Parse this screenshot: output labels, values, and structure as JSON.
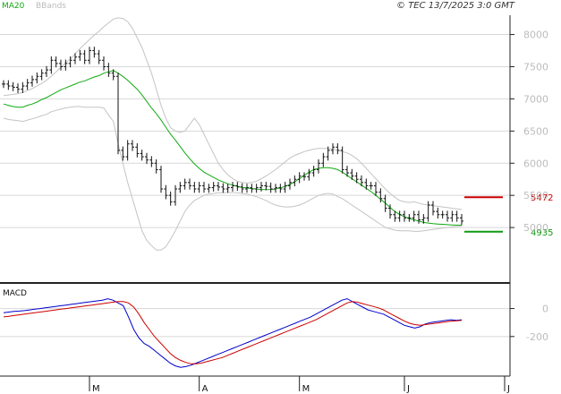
{
  "header": {
    "legend": [
      {
        "label": "MA20",
        "color": "#11aa11"
      },
      {
        "label": "BBands",
        "color": "#bbbbbb"
      }
    ],
    "copyright": "© TEC 13/7/2025 3:0 GMT"
  },
  "chart_data": [
    {
      "type": "candlestick",
      "ylim": [
        4250,
        8300
      ],
      "y_ticks": [
        {
          "value": 8000,
          "label": "8000"
        },
        {
          "value": 7500,
          "label": "7500"
        },
        {
          "value": 7000,
          "label": "7000"
        },
        {
          "value": 6500,
          "label": "6500"
        },
        {
          "value": 6000,
          "label": "6000"
        },
        {
          "value": 5500,
          "label": "5500"
        },
        {
          "value": 5000,
          "label": "5000"
        }
      ],
      "x_labels": [
        {
          "label": "M",
          "index": 18
        },
        {
          "label": "A",
          "index": 41
        },
        {
          "label": "M",
          "index": 62
        },
        {
          "label": "J",
          "index": 84
        },
        {
          "label": "J",
          "index": 105
        }
      ],
      "levels": [
        {
          "value": 5472,
          "label": "5472",
          "color": "#cc0000"
        },
        {
          "value": 4935,
          "label": "4935",
          "color": "#119911"
        }
      ],
      "series": [
        {
          "name": "MA20",
          "color": "#11aa11"
        },
        {
          "name": "BBands",
          "color": "#c4c4c4"
        }
      ],
      "close": [
        7230,
        7200,
        7180,
        7150,
        7200,
        7250,
        7300,
        7350,
        7400,
        7450,
        7600,
        7550,
        7500,
        7550,
        7600,
        7650,
        7700,
        7600,
        7750,
        7700,
        7600,
        7500,
        7400,
        7350,
        6200,
        6100,
        6300,
        6250,
        6150,
        6100,
        6050,
        6000,
        5900,
        5600,
        5500,
        5400,
        5600,
        5650,
        5700,
        5650,
        5600,
        5650,
        5600,
        5620,
        5650,
        5630,
        5600,
        5620,
        5650,
        5630,
        5600,
        5620,
        5600,
        5620,
        5650,
        5640,
        5600,
        5620,
        5600,
        5650,
        5700,
        5750,
        5800,
        5790,
        5850,
        5900,
        6000,
        6100,
        6200,
        6250,
        6200,
        5900,
        5850,
        5800,
        5750,
        5700,
        5650,
        5650,
        5550,
        5450,
        5300,
        5200,
        5150,
        5200,
        5150,
        5150,
        5200,
        5120,
        5150,
        5350,
        5250,
        5200,
        5200,
        5150,
        5200,
        5150,
        5100
      ],
      "ma20": [
        6920,
        6900,
        6880,
        6870,
        6870,
        6900,
        6920,
        6950,
        6990,
        7020,
        7060,
        7100,
        7140,
        7170,
        7200,
        7230,
        7260,
        7280,
        7310,
        7340,
        7360,
        7400,
        7420,
        7440,
        7400,
        7350,
        7290,
        7220,
        7150,
        7060,
        6960,
        6860,
        6770,
        6670,
        6560,
        6450,
        6360,
        6260,
        6160,
        6070,
        5990,
        5920,
        5860,
        5820,
        5780,
        5740,
        5710,
        5680,
        5660,
        5640,
        5625,
        5615,
        5605,
        5598,
        5592,
        5590,
        5592,
        5600,
        5615,
        5640,
        5670,
        5710,
        5760,
        5810,
        5860,
        5900,
        5920,
        5930,
        5930,
        5920,
        5900,
        5860,
        5810,
        5760,
        5710,
        5660,
        5610,
        5560,
        5500,
        5440,
        5380,
        5310,
        5250,
        5200,
        5170,
        5140,
        5120,
        5100,
        5080,
        5070,
        5060,
        5055,
        5050,
        5045,
        5040,
        5038,
        5036
      ],
      "bb_upper": [
        7050,
        7060,
        7070,
        7080,
        7100,
        7130,
        7160,
        7200,
        7240,
        7290,
        7350,
        7420,
        7490,
        7560,
        7620,
        7700,
        7780,
        7850,
        7920,
        7990,
        8050,
        8120,
        8180,
        8240,
        8260,
        8250,
        8200,
        8100,
        7950,
        7800,
        7600,
        7400,
        7150,
        6900,
        6700,
        6550,
        6500,
        6480,
        6500,
        6600,
        6700,
        6600,
        6450,
        6300,
        6150,
        6000,
        5900,
        5820,
        5760,
        5720,
        5700,
        5690,
        5700,
        5720,
        5760,
        5800,
        5850,
        5900,
        5960,
        6020,
        6080,
        6120,
        6150,
        6180,
        6200,
        6220,
        6230,
        6230,
        6230,
        6220,
        6200,
        6180,
        6160,
        6120,
        6070,
        6000,
        5920,
        5840,
        5760,
        5680,
        5600,
        5530,
        5470,
        5420,
        5400,
        5390,
        5400,
        5380,
        5360,
        5350,
        5340,
        5330,
        5320,
        5310,
        5300,
        5290,
        5280
      ],
      "bb_lower": [
        6700,
        6680,
        6670,
        6660,
        6650,
        6670,
        6690,
        6710,
        6740,
        6760,
        6800,
        6820,
        6840,
        6860,
        6870,
        6880,
        6880,
        6870,
        6870,
        6870,
        6870,
        6860,
        6750,
        6650,
        6300,
        6000,
        5700,
        5450,
        5200,
        4950,
        4800,
        4720,
        4650,
        4650,
        4700,
        4820,
        4950,
        5100,
        5250,
        5350,
        5420,
        5460,
        5500,
        5520,
        5530,
        5540,
        5540,
        5545,
        5545,
        5540,
        5530,
        5520,
        5500,
        5480,
        5450,
        5420,
        5380,
        5350,
        5330,
        5320,
        5320,
        5330,
        5350,
        5380,
        5420,
        5460,
        5500,
        5520,
        5530,
        5520,
        5480,
        5450,
        5400,
        5350,
        5300,
        5250,
        5200,
        5150,
        5100,
        5050,
        5000,
        4980,
        4960,
        4950,
        4950,
        4950,
        4940,
        4940,
        4950,
        4960,
        4970,
        4980,
        4990,
        5000,
        5010,
        5020,
        5020
      ]
    },
    {
      "type": "line",
      "title": "MACD",
      "ylim": [
        -470,
        170
      ],
      "y_ticks": [
        {
          "value": 0,
          "label": "0"
        },
        {
          "value": -200,
          "label": "-200"
        }
      ],
      "series": [
        {
          "name": "MACD",
          "color": "#0000cc",
          "values": [
            -30,
            -25,
            -20,
            -18,
            -15,
            -10,
            -5,
            0,
            5,
            10,
            15,
            20,
            25,
            30,
            35,
            40,
            45,
            50,
            55,
            60,
            70,
            60,
            40,
            20,
            -60,
            -150,
            -210,
            -250,
            -270,
            -300,
            -330,
            -360,
            -390,
            -410,
            -420,
            -415,
            -405,
            -390,
            -375,
            -360,
            -345,
            -330,
            -315,
            -300,
            -285,
            -270,
            -255,
            -240,
            -225,
            -210,
            -195,
            -180,
            -165,
            -150,
            -135,
            -120,
            -105,
            -90,
            -75,
            -60,
            -40,
            -20,
            0,
            20,
            40,
            60,
            70,
            50,
            30,
            10,
            -10,
            -20,
            -30,
            -40,
            -60,
            -80,
            -100,
            -120,
            -130,
            -140,
            -130,
            -110,
            -100,
            -95,
            -90,
            -85,
            -80,
            -85,
            -80
          ]
        },
        {
          "name": "Signal",
          "color": "#cc0000",
          "values": [
            -60,
            -55,
            -50,
            -45,
            -40,
            -35,
            -30,
            -25,
            -20,
            -15,
            -10,
            -5,
            0,
            5,
            10,
            15,
            20,
            25,
            30,
            35,
            40,
            45,
            50,
            50,
            40,
            10,
            -40,
            -100,
            -150,
            -200,
            -240,
            -280,
            -320,
            -350,
            -370,
            -385,
            -395,
            -395,
            -390,
            -380,
            -370,
            -360,
            -350,
            -335,
            -320,
            -305,
            -290,
            -275,
            -260,
            -245,
            -230,
            -215,
            -200,
            -185,
            -170,
            -155,
            -140,
            -125,
            -110,
            -95,
            -80,
            -60,
            -40,
            -20,
            0,
            20,
            40,
            50,
            45,
            35,
            25,
            15,
            5,
            -10,
            -30,
            -50,
            -70,
            -90,
            -105,
            -115,
            -120,
            -115,
            -110,
            -105,
            -100,
            -95,
            -90,
            -88,
            -85
          ]
        }
      ]
    }
  ]
}
